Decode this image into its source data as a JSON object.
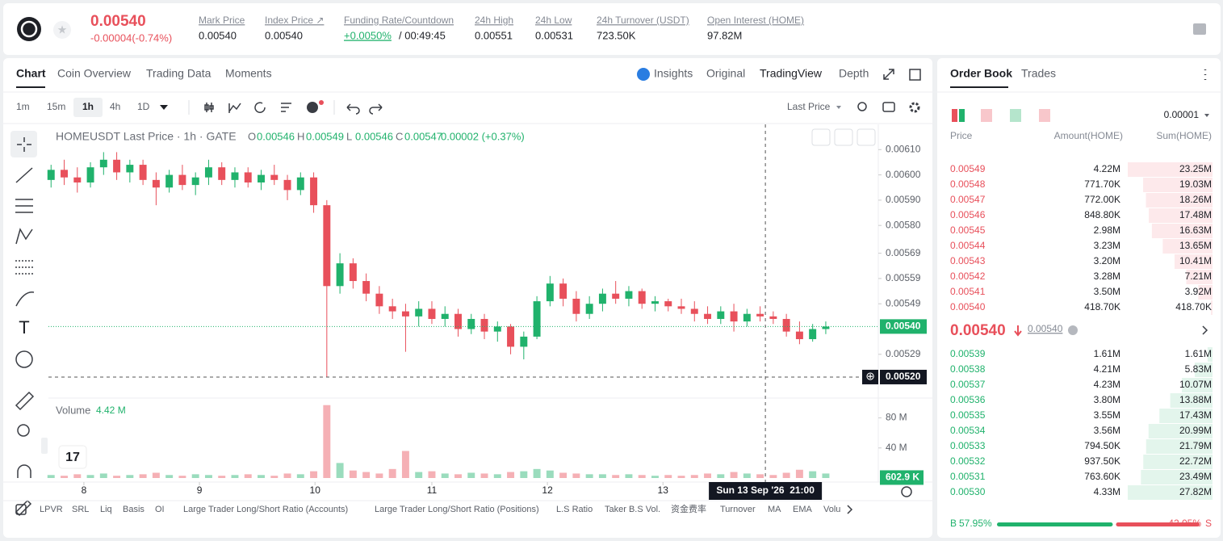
{
  "header": {
    "last_price": "0.00540",
    "change": "-0.00004(-0.74%)",
    "stats": [
      {
        "label": "Mark Price",
        "value": "0.00540"
      },
      {
        "label": "Index Price ↗",
        "value": "0.00540"
      },
      {
        "label": "Funding Rate/Countdown",
        "value": "+0.0050%",
        "value2": "/ 00:49:45"
      },
      {
        "label": "24h High",
        "value": "0.00551"
      },
      {
        "label": "24h Low",
        "value": "0.00531"
      },
      {
        "label": "24h Turnover (USDT)",
        "value": "723.50K"
      },
      {
        "label": "Open Interest (HOME)",
        "value": "97.82M"
      }
    ]
  },
  "chart_tabs": [
    "Chart",
    "Coin Overview",
    "Trading Data",
    "Moments"
  ],
  "view_tabs": [
    "Insights",
    "Original",
    "TradingView",
    "Depth"
  ],
  "intervals": [
    "1m",
    "15m",
    "1h",
    "4h",
    "1D"
  ],
  "price_source": "Last Price",
  "legend": {
    "symbol": "HOMEUSDT Last Price · 1h · GATE",
    "ohlc": [
      {
        "key": "O",
        "value": "0.00546"
      },
      {
        "key": "H",
        "value": "0.00549"
      },
      {
        "key": "L",
        "value": "0.00546"
      },
      {
        "key": "C",
        "value": "0.00547"
      }
    ],
    "change": "0.00002 (+0.37%)"
  },
  "chart_data": {
    "type": "candlestick",
    "up_color": "#20b26c",
    "down_color": "#e8505b",
    "candles": [
      [
        0.00598,
        0.00604,
        0.00595,
        0.00602
      ],
      [
        0.00602,
        0.00606,
        0.00596,
        0.00599
      ],
      [
        0.00599,
        0.00603,
        0.00593,
        0.00597
      ],
      [
        0.00597,
        0.00605,
        0.00595,
        0.00603
      ],
      [
        0.00603,
        0.00609,
        0.006,
        0.00606
      ],
      [
        0.00606,
        0.00609,
        0.00598,
        0.00601
      ],
      [
        0.00601,
        0.00606,
        0.00597,
        0.00604
      ],
      [
        0.00604,
        0.00606,
        0.00596,
        0.00598
      ],
      [
        0.00598,
        0.00601,
        0.00588,
        0.00595
      ],
      [
        0.00595,
        0.00602,
        0.00593,
        0.006
      ],
      [
        0.006,
        0.00604,
        0.00594,
        0.00596
      ],
      [
        0.00596,
        0.00601,
        0.00592,
        0.00599
      ],
      [
        0.00599,
        0.00606,
        0.00596,
        0.00603
      ],
      [
        0.00603,
        0.00605,
        0.00596,
        0.00598
      ],
      [
        0.00598,
        0.00603,
        0.00595,
        0.00601
      ],
      [
        0.00601,
        0.00603,
        0.00595,
        0.00597
      ],
      [
        0.00597,
        0.00602,
        0.00594,
        0.006
      ],
      [
        0.006,
        0.00604,
        0.00596,
        0.00598
      ],
      [
        0.00598,
        0.006,
        0.0059,
        0.00594
      ],
      [
        0.00594,
        0.00601,
        0.00592,
        0.00599
      ],
      [
        0.00599,
        0.00601,
        0.00585,
        0.00588
      ],
      [
        0.00588,
        0.0059,
        0.0052,
        0.00556
      ],
      [
        0.00556,
        0.00569,
        0.00553,
        0.00565
      ],
      [
        0.00565,
        0.00567,
        0.00555,
        0.00558
      ],
      [
        0.00558,
        0.00561,
        0.0055,
        0.00553
      ],
      [
        0.00553,
        0.00556,
        0.00545,
        0.00548
      ],
      [
        0.00548,
        0.00551,
        0.00543,
        0.00546
      ],
      [
        0.00546,
        0.00549,
        0.0053,
        0.00544
      ],
      [
        0.00544,
        0.0055,
        0.0054,
        0.00547
      ],
      [
        0.00547,
        0.0055,
        0.00541,
        0.00543
      ],
      [
        0.00543,
        0.00548,
        0.0054,
        0.00545
      ],
      [
        0.00545,
        0.00547,
        0.00536,
        0.00539
      ],
      [
        0.00539,
        0.00545,
        0.00537,
        0.00543
      ],
      [
        0.00543,
        0.00545,
        0.00535,
        0.00538
      ],
      [
        0.00538,
        0.00542,
        0.00534,
        0.0054
      ],
      [
        0.0054,
        0.00541,
        0.00529,
        0.00532
      ],
      [
        0.00532,
        0.00538,
        0.00527,
        0.00536
      ],
      [
        0.00536,
        0.00552,
        0.00535,
        0.0055
      ],
      [
        0.0055,
        0.0056,
        0.00548,
        0.00557
      ],
      [
        0.00557,
        0.00559,
        0.00548,
        0.00551
      ],
      [
        0.00551,
        0.00554,
        0.00542,
        0.00545
      ],
      [
        0.00545,
        0.00552,
        0.00543,
        0.00549
      ],
      [
        0.00549,
        0.00555,
        0.00546,
        0.00553
      ],
      [
        0.00553,
        0.00558,
        0.00549,
        0.00551
      ],
      [
        0.00551,
        0.00556,
        0.00548,
        0.00554
      ],
      [
        0.00554,
        0.00555,
        0.00547,
        0.00549
      ],
      [
        0.00549,
        0.00552,
        0.00546,
        0.0055
      ],
      [
        0.0055,
        0.00551,
        0.00546,
        0.00548
      ],
      [
        0.00548,
        0.00551,
        0.00545,
        0.00547
      ],
      [
        0.00547,
        0.0055,
        0.00542,
        0.00545
      ],
      [
        0.00545,
        0.00548,
        0.00541,
        0.00543
      ],
      [
        0.00543,
        0.00548,
        0.00541,
        0.00546
      ],
      [
        0.00546,
        0.00549,
        0.00538,
        0.00542
      ],
      [
        0.00542,
        0.00547,
        0.0054,
        0.00545
      ],
      [
        0.00545,
        0.00548,
        0.00542,
        0.00544
      ],
      [
        0.00544,
        0.00546,
        0.00541,
        0.00543
      ],
      [
        0.00543,
        0.00545,
        0.00536,
        0.00538
      ],
      [
        0.00538,
        0.00542,
        0.00533,
        0.00535
      ],
      [
        0.00535,
        0.00541,
        0.00534,
        0.00539
      ],
      [
        0.00539,
        0.00542,
        0.00537,
        0.0054
      ]
    ],
    "xlim": [
      -0.2,
      63
    ],
    "xticks": [
      {
        "value": 2.5,
        "label": "8"
      },
      {
        "value": 11.3,
        "label": "9"
      },
      {
        "value": 20.1,
        "label": "10"
      },
      {
        "value": 29,
        "label": "11"
      },
      {
        "value": 37.8,
        "label": "12"
      },
      {
        "value": 46.6,
        "label": "13"
      }
    ],
    "ylim": [
      0.00512,
      0.0062
    ],
    "yticks": [
      {
        "value": 0.0061,
        "label": "0.00610"
      },
      {
        "value": 0.006,
        "label": "0.00600"
      },
      {
        "value": 0.0059,
        "label": "0.00590"
      },
      {
        "value": 0.0058,
        "label": "0.00580"
      },
      {
        "value": 0.00569,
        "label": "0.00569"
      },
      {
        "value": 0.00559,
        "label": "0.00559"
      },
      {
        "value": 0.00549,
        "label": "0.00549"
      },
      {
        "value": 0.00529,
        "label": "0.00529"
      }
    ],
    "last_price": {
      "value": 0.0054,
      "label": "0.00540"
    },
    "crosshair": {
      "x": 54.4,
      "time_label": "Sun 13 Sep '26  21:00",
      "y": {
        "value": 0.0052,
        "label": "0.00520"
      }
    },
    "volume": {
      "label": "Volume",
      "current": "4.42 M",
      "values": [
        4,
        3,
        5,
        4,
        6,
        3,
        4,
        5,
        7,
        4,
        3,
        5,
        4,
        3,
        4,
        5,
        4,
        3,
        6,
        5,
        9,
        97,
        20,
        10,
        8,
        6,
        12,
        36,
        8,
        9,
        6,
        5,
        7,
        6,
        5,
        8,
        9,
        12,
        10,
        7,
        6,
        5,
        5,
        4,
        5,
        4,
        3,
        4,
        3,
        4,
        6,
        5,
        8,
        6,
        5,
        4,
        7,
        11,
        9,
        6
      ],
      "ylim": [
        0,
        101
      ],
      "yticks": [
        {
          "value": 40,
          "label": "40 M"
        },
        {
          "value": 80,
          "label": "80 M"
        }
      ],
      "last": {
        "value": 0.6029,
        "label": "602.9 K"
      }
    }
  },
  "bottom_tabs": [
    "LPVR",
    "SRL",
    "Liq",
    "Basis",
    "OI",
    "Large Trader Long/Short Ratio (Accounts)",
    "Large Trader Long/Short Ratio (Positions)",
    "L.S Ratio",
    "Taker B.S Vol.",
    "资金费率",
    "Turnover",
    "MA",
    "EMA",
    "Volu"
  ],
  "order_book": {
    "tabs": [
      "Order Book",
      "Trades"
    ],
    "precision": "0.00001",
    "columns": [
      "Price",
      "Amount(HOME)",
      "Sum(HOME)"
    ],
    "asks": [
      {
        "price": "0.00549",
        "amount": "4.22M",
        "sum": {
          "value": 23.25,
          "label": "23.25M"
        }
      },
      {
        "price": "0.00548",
        "amount": "771.70K",
        "sum": {
          "value": 19.03,
          "label": "19.03M"
        }
      },
      {
        "price": "0.00547",
        "amount": "772.00K",
        "sum": {
          "value": 18.26,
          "label": "18.26M"
        }
      },
      {
        "price": "0.00546",
        "amount": "848.80K",
        "sum": {
          "value": 17.48,
          "label": "17.48M"
        }
      },
      {
        "price": "0.00545",
        "amount": "2.98M",
        "sum": {
          "value": 16.63,
          "label": "16.63M"
        }
      },
      {
        "price": "0.00544",
        "amount": "3.23M",
        "sum": {
          "value": 13.65,
          "label": "13.65M"
        }
      },
      {
        "price": "0.00543",
        "amount": "3.20M",
        "sum": {
          "value": 10.41,
          "label": "10.41M"
        }
      },
      {
        "price": "0.00542",
        "amount": "3.28M",
        "sum": {
          "value": 7.21,
          "label": "7.21M"
        }
      },
      {
        "price": "0.00541",
        "amount": "3.50M",
        "sum": {
          "value": 3.92,
          "label": "3.92M"
        }
      },
      {
        "price": "0.00540",
        "amount": "418.70K",
        "sum": {
          "value": 0.4187,
          "label": "418.70K"
        }
      }
    ],
    "last_price": "0.00540",
    "mark_price": "0.00540",
    "bids": [
      {
        "price": "0.00539",
        "amount": "1.61M",
        "sum": {
          "value": 1.61,
          "label": "1.61M"
        }
      },
      {
        "price": "0.00538",
        "amount": "4.21M",
        "sum": {
          "value": 5.83,
          "label": "5.83M"
        }
      },
      {
        "price": "0.00537",
        "amount": "4.23M",
        "sum": {
          "value": 10.07,
          "label": "10.07M"
        }
      },
      {
        "price": "0.00536",
        "amount": "3.80M",
        "sum": {
          "value": 13.88,
          "label": "13.88M"
        }
      },
      {
        "price": "0.00535",
        "amount": "3.55M",
        "sum": {
          "value": 17.43,
          "label": "17.43M"
        }
      },
      {
        "price": "0.00534",
        "amount": "3.56M",
        "sum": {
          "value": 20.99,
          "label": "20.99M"
        }
      },
      {
        "price": "0.00533",
        "amount": "794.50K",
        "sum": {
          "value": 21.79,
          "label": "21.79M"
        }
      },
      {
        "price": "0.00532",
        "amount": "937.50K",
        "sum": {
          "value": 22.72,
          "label": "22.72M"
        }
      },
      {
        "price": "0.00531",
        "amount": "763.60K",
        "sum": {
          "value": 23.49,
          "label": "23.49M"
        }
      },
      {
        "price": "0.00530",
        "amount": "4.33M",
        "sum": {
          "value": 27.82,
          "label": "27.82M"
        }
      }
    ],
    "ratio": {
      "buy_label": "B",
      "buy": {
        "value": 57.95,
        "label": "57.95%"
      },
      "sell": {
        "value": 42.05,
        "label": "42.05%"
      },
      "sell_label": "S"
    }
  }
}
